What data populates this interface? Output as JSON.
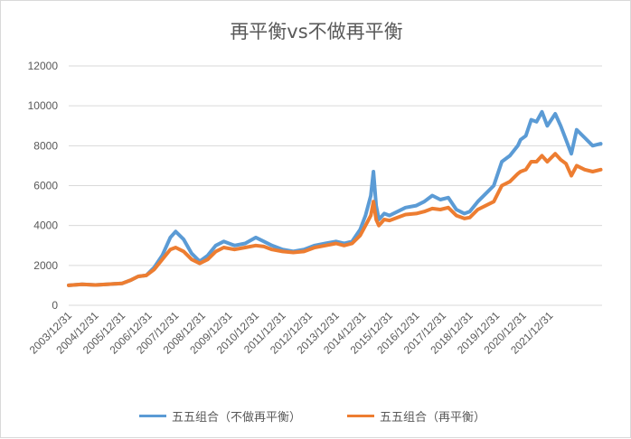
{
  "chart_data": {
    "type": "line",
    "title": "再平衡vs不做再平衡",
    "xlabel": "",
    "ylabel": "",
    "ylim": [
      0,
      12000
    ],
    "yticks": [
      0,
      2000,
      4000,
      6000,
      8000,
      10000,
      12000
    ],
    "x_ticks": [
      "2003/12/31",
      "2004/12/31",
      "2005/12/31",
      "2006/12/31",
      "2007/12/31",
      "2008/12/31",
      "2009/12/31",
      "2010/12/31",
      "2011/12/31",
      "2012/12/31",
      "2013/12/31",
      "2014/12/31",
      "2015/12/31",
      "2016/12/31",
      "2017/12/31",
      "2018/12/31",
      "2019/12/31",
      "2020/12/31",
      "2021/12/31"
    ],
    "grid": "horizontal",
    "legend_position": "bottom",
    "x_years": [
      2004.0,
      2004.5,
      2005.0,
      2005.5,
      2006.0,
      2006.3,
      2006.6,
      2006.9,
      2007.2,
      2007.5,
      2007.8,
      2008.0,
      2008.3,
      2008.6,
      2008.9,
      2009.2,
      2009.5,
      2009.8,
      2010.2,
      2010.6,
      2011.0,
      2011.3,
      2011.6,
      2012.0,
      2012.4,
      2012.8,
      2013.2,
      2013.6,
      2014.0,
      2014.3,
      2014.6,
      2014.9,
      2015.1,
      2015.3,
      2015.4,
      2015.5,
      2015.6,
      2015.8,
      2016.0,
      2016.3,
      2016.6,
      2017.0,
      2017.3,
      2017.6,
      2017.9,
      2018.2,
      2018.5,
      2018.8,
      2019.0,
      2019.3,
      2019.6,
      2019.9,
      2020.2,
      2020.5,
      2020.8,
      2020.9,
      2021.1,
      2021.3,
      2021.5,
      2021.7,
      2021.9,
      2022.2,
      2022.4,
      2022.6,
      2022.8,
      2023.0,
      2023.3,
      2023.6,
      2023.9
    ],
    "series": [
      {
        "name": "五五组合（不做再平衡）",
        "color": "#5b9bd5",
        "values": [
          1000,
          1050,
          1020,
          1060,
          1100,
          1250,
          1450,
          1500,
          1900,
          2500,
          3400,
          3700,
          3300,
          2600,
          2200,
          2500,
          3000,
          3200,
          3000,
          3100,
          3400,
          3200,
          3000,
          2800,
          2700,
          2800,
          3000,
          3100,
          3200,
          3100,
          3200,
          3800,
          4500,
          5500,
          6700,
          5000,
          4300,
          4600,
          4500,
          4700,
          4900,
          5000,
          5200,
          5500,
          5300,
          5400,
          4800,
          4600,
          4700,
          5200,
          5600,
          6000,
          7200,
          7500,
          8000,
          8300,
          8500,
          9300,
          9200,
          9700,
          9000,
          9600,
          9000,
          8300,
          7600,
          8800,
          8400,
          8000,
          8100
        ]
      },
      {
        "name": "五五组合（再平衡）",
        "color": "#ed7d31",
        "values": [
          1000,
          1050,
          1020,
          1060,
          1100,
          1250,
          1450,
          1500,
          1800,
          2300,
          2800,
          2900,
          2700,
          2300,
          2100,
          2300,
          2700,
          2900,
          2800,
          2900,
          3000,
          2950,
          2800,
          2700,
          2650,
          2700,
          2900,
          3000,
          3100,
          3000,
          3100,
          3500,
          4000,
          4500,
          5200,
          4300,
          4000,
          4300,
          4250,
          4400,
          4550,
          4600,
          4700,
          4850,
          4800,
          4900,
          4500,
          4350,
          4400,
          4800,
          5000,
          5200,
          6000,
          6200,
          6600,
          6700,
          6800,
          7200,
          7200,
          7500,
          7200,
          7600,
          7300,
          7100,
          6500,
          7000,
          6800,
          6700,
          6800
        ]
      }
    ]
  }
}
